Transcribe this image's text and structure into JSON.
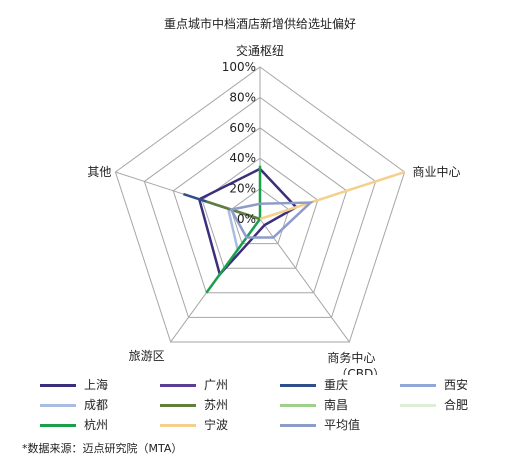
{
  "chart_data": {
    "type": "radar",
    "title": "重点城市中档酒店新增供给选址偏好",
    "axes": [
      "交通枢纽",
      "商业中心",
      "商务中心（CBD）",
      "旅游区",
      "其他"
    ],
    "axis_label_lines": [
      [
        "交通枢纽"
      ],
      [
        "商业中心"
      ],
      [
        "商务中心",
        "（CBD）"
      ],
      [
        "旅游区"
      ],
      [
        "其他"
      ]
    ],
    "r_ticks": [
      "0%",
      "20%",
      "40%",
      "60%",
      "80%",
      "100%"
    ],
    "rlim": [
      0,
      100
    ],
    "grid": true,
    "legend_position": "bottom",
    "series": [
      {
        "name": "上海",
        "color": "#3b2f7c",
        "values": [
          33,
          25,
          5,
          45,
          42
        ]
      },
      {
        "name": "广州",
        "color": "#5b3f96",
        "values": [
          0,
          0,
          0,
          0,
          0
        ]
      },
      {
        "name": "重庆",
        "color": "#2f4f8a",
        "values": [
          0,
          0,
          0,
          0,
          53
        ]
      },
      {
        "name": "西安",
        "color": "#8fa8d8",
        "values": [
          0,
          0,
          0,
          0,
          0
        ]
      },
      {
        "name": "成都",
        "color": "#a9bde3",
        "values": [
          0,
          0,
          0,
          25,
          22
        ]
      },
      {
        "name": "苏州",
        "color": "#5f7f3a",
        "values": [
          0,
          0,
          0,
          0,
          37
        ]
      },
      {
        "name": "南昌",
        "color": "#9fcf8a",
        "values": [
          0,
          0,
          0,
          0,
          0
        ]
      },
      {
        "name": "合肥",
        "color": "#dcefd6",
        "values": [
          0,
          0,
          0,
          0,
          0
        ]
      },
      {
        "name": "杭州",
        "color": "#1aa04a",
        "values": [
          35,
          0,
          0,
          60,
          0
        ]
      },
      {
        "name": "宁波",
        "color": "#f5d08c",
        "values": [
          0,
          100,
          0,
          0,
          0
        ]
      },
      {
        "name": "平均值",
        "color": "#8e9cc9",
        "values": [
          10,
          35,
          15,
          15,
          20
        ]
      }
    ]
  },
  "source_note": "*数据来源：迈点研究院（MTA）"
}
